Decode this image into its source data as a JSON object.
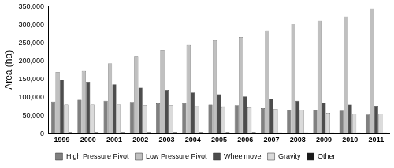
{
  "chart_data": {
    "type": "bar",
    "y_label": "Area (ha)",
    "categories": [
      "1999",
      "2000",
      "2001",
      "2002",
      "2003",
      "2004",
      "2005",
      "2006",
      "2007",
      "2008",
      "2009",
      "2010",
      "2011"
    ],
    "series": [
      {
        "name": "High Pressure Pivot",
        "color": "#808080",
        "values": [
          88000,
          93000,
          90000,
          87000,
          83000,
          83000,
          80000,
          78000,
          70000,
          65000,
          65000,
          63000,
          52000
        ]
      },
      {
        "name": "Low Pressure Pivot",
        "color": "#c0c0c0",
        "values": [
          170000,
          173000,
          193000,
          213000,
          229000,
          245000,
          257000,
          266000,
          284000,
          302000,
          312000,
          323000,
          345000
        ]
      },
      {
        "name": "Wheelmove",
        "color": "#4d4d4d",
        "values": [
          148000,
          142000,
          135000,
          128000,
          120000,
          113000,
          108000,
          102000,
          96000,
          90000,
          85000,
          80000,
          75000
        ]
      },
      {
        "name": "Gravity",
        "color": "#dadada",
        "values": [
          80000,
          80000,
          80000,
          78000,
          78000,
          75000,
          73000,
          72000,
          68000,
          65000,
          57000,
          55000,
          55000
        ]
      },
      {
        "name": "Other",
        "color": "#1a1a1a",
        "values": [
          4000,
          4000,
          4000,
          4000,
          4000,
          4000,
          4000,
          4000,
          3000,
          3000,
          3000,
          3000,
          3000
        ]
      }
    ],
    "ylim": [
      0,
      350000
    ],
    "yticks": [
      0,
      {
        "value": 50000,
        "label": "50,000"
      },
      {
        "value": 100000,
        "label": "100,000"
      },
      {
        "value": 150000,
        "label": "150,000"
      },
      {
        "value": 200000,
        "label": "200,000"
      },
      {
        "value": 250000,
        "label": "250,000"
      },
      {
        "value": 300000,
        "label": "300,000"
      },
      {
        "value": 350000,
        "label": "350,000"
      }
    ],
    "grid": false,
    "legend": "bottom"
  }
}
